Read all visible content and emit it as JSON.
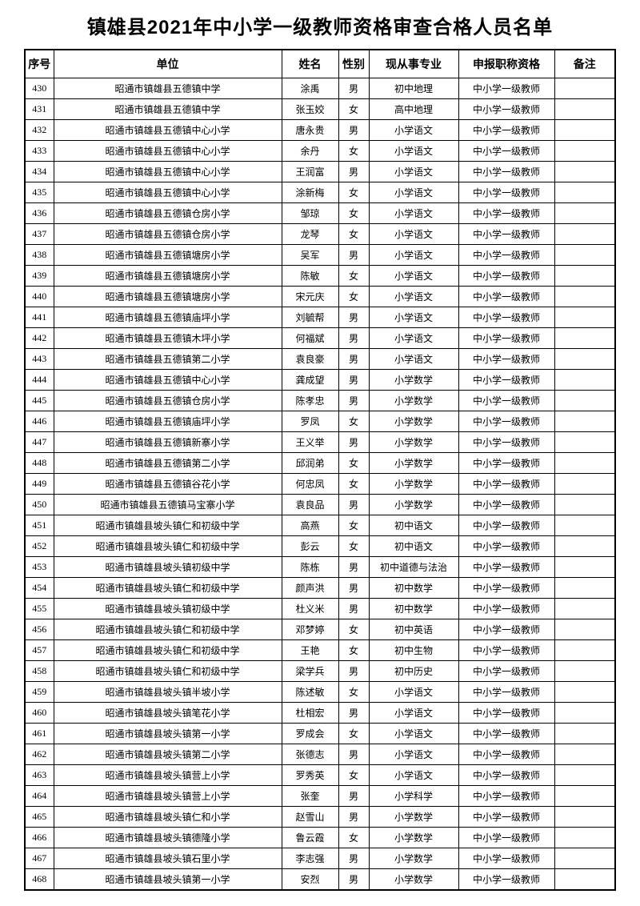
{
  "page": {
    "title": "镇雄县2021年中小学一级教师资格审查合格人员名单"
  },
  "colors": {
    "background": "#ffffff",
    "text": "#000000",
    "border": "#000000"
  },
  "table": {
    "headers": [
      "序号",
      "单位",
      "姓名",
      "性别",
      "现从事专业",
      "申报职称资格",
      "备注"
    ],
    "rows": [
      [
        "430",
        "昭通市镇雄县五德镇中学",
        "涂禹",
        "男",
        "初中地理",
        "中小学一级教师",
        ""
      ],
      [
        "431",
        "昭通市镇雄县五德镇中学",
        "张玉姣",
        "女",
        "高中地理",
        "中小学一级教师",
        ""
      ],
      [
        "432",
        "昭通市镇雄县五德镇中心小学",
        "唐永贵",
        "男",
        "小学语文",
        "中小学一级教师",
        ""
      ],
      [
        "433",
        "昭通市镇雄县五德镇中心小学",
        "余丹",
        "女",
        "小学语文",
        "中小学一级教师",
        ""
      ],
      [
        "434",
        "昭通市镇雄县五德镇中心小学",
        "王润富",
        "男",
        "小学语文",
        "中小学一级教师",
        ""
      ],
      [
        "435",
        "昭通市镇雄县五德镇中心小学",
        "涂新梅",
        "女",
        "小学语文",
        "中小学一级教师",
        ""
      ],
      [
        "436",
        "昭通市镇雄县五德镇仓房小学",
        "邹琼",
        "女",
        "小学语文",
        "中小学一级教师",
        ""
      ],
      [
        "437",
        "昭通市镇雄县五德镇仓房小学",
        "龙琴",
        "女",
        "小学语文",
        "中小学一级教师",
        ""
      ],
      [
        "438",
        "昭通市镇雄县五德镇塘房小学",
        "吴军",
        "男",
        "小学语文",
        "中小学一级教师",
        ""
      ],
      [
        "439",
        "昭通市镇雄县五德镇塘房小学",
        "陈敏",
        "女",
        "小学语文",
        "中小学一级教师",
        ""
      ],
      [
        "440",
        "昭通市镇雄县五德镇塘房小学",
        "宋元庆",
        "女",
        "小学语文",
        "中小学一级教师",
        ""
      ],
      [
        "441",
        "昭通市镇雄县五德镇庙坪小学",
        "刘毓帮",
        "男",
        "小学语文",
        "中小学一级教师",
        ""
      ],
      [
        "442",
        "昭通市镇雄县五德镇木坪小学",
        "何福斌",
        "男",
        "小学语文",
        "中小学一级教师",
        ""
      ],
      [
        "443",
        "昭通市镇雄县五德镇第二小学",
        "袁良豪",
        "男",
        "小学语文",
        "中小学一级教师",
        ""
      ],
      [
        "444",
        "昭通市镇雄县五德镇中心小学",
        "龚成望",
        "男",
        "小学数学",
        "中小学一级教师",
        ""
      ],
      [
        "445",
        "昭通市镇雄县五德镇仓房小学",
        "陈孝忠",
        "男",
        "小学数学",
        "中小学一级教师",
        ""
      ],
      [
        "446",
        "昭通市镇雄县五德镇庙坪小学",
        "罗凤",
        "女",
        "小学数学",
        "中小学一级教师",
        ""
      ],
      [
        "447",
        "昭通市镇雄县五德镇新寨小学",
        "王义举",
        "男",
        "小学数学",
        "中小学一级教师",
        ""
      ],
      [
        "448",
        "昭通市镇雄县五德镇第二小学",
        "邱润弟",
        "女",
        "小学数学",
        "中小学一级教师",
        ""
      ],
      [
        "449",
        "昭通市镇雄县五德镇谷花小学",
        "何忠凤",
        "女",
        "小学数学",
        "中小学一级教师",
        ""
      ],
      [
        "450",
        "昭通市镇雄县五德镇马宝寨小学",
        "袁良品",
        "男",
        "小学数学",
        "中小学一级教师",
        ""
      ],
      [
        "451",
        "昭通市镇雄县坡头镇仁和初级中学",
        "高燕",
        "女",
        "初中语文",
        "中小学一级教师",
        ""
      ],
      [
        "452",
        "昭通市镇雄县坡头镇仁和初级中学",
        "彭云",
        "女",
        "初中语文",
        "中小学一级教师",
        ""
      ],
      [
        "453",
        "昭通市镇雄县坡头镇初级中学",
        "陈栋",
        "男",
        "初中道德与法治",
        "中小学一级教师",
        ""
      ],
      [
        "454",
        "昭通市镇雄县坡头镇仁和初级中学",
        "颜声洪",
        "男",
        "初中数学",
        "中小学一级教师",
        ""
      ],
      [
        "455",
        "昭通市镇雄县坡头镇初级中学",
        "杜义米",
        "男",
        "初中数学",
        "中小学一级教师",
        ""
      ],
      [
        "456",
        "昭通市镇雄县坡头镇仁和初级中学",
        "邓梦婷",
        "女",
        "初中英语",
        "中小学一级教师",
        ""
      ],
      [
        "457",
        "昭通市镇雄县坡头镇仁和初级中学",
        "王艳",
        "女",
        "初中生物",
        "中小学一级教师",
        ""
      ],
      [
        "458",
        "昭通市镇雄县坡头镇仁和初级中学",
        "梁学兵",
        "男",
        "初中历史",
        "中小学一级教师",
        ""
      ],
      [
        "459",
        "昭通市镇雄县坡头镇半坡小学",
        "陈述敏",
        "女",
        "小学语文",
        "中小学一级教师",
        ""
      ],
      [
        "460",
        "昭通市镇雄县坡头镇笔花小学",
        "杜相宏",
        "男",
        "小学语文",
        "中小学一级教师",
        ""
      ],
      [
        "461",
        "昭通市镇雄县坡头镇第一小学",
        "罗成会",
        "女",
        "小学语文",
        "中小学一级教师",
        ""
      ],
      [
        "462",
        "昭通市镇雄县坡头镇第二小学",
        "张德志",
        "男",
        "小学语文",
        "中小学一级教师",
        ""
      ],
      [
        "463",
        "昭通市镇雄县坡头镇营上小学",
        "罗秀英",
        "女",
        "小学语文",
        "中小学一级教师",
        ""
      ],
      [
        "464",
        "昭通市镇雄县坡头镇营上小学",
        "张奎",
        "男",
        "小学科学",
        "中小学一级教师",
        ""
      ],
      [
        "465",
        "昭通市镇雄县坡头镇仁和小学",
        "赵雪山",
        "男",
        "小学数学",
        "中小学一级教师",
        ""
      ],
      [
        "466",
        "昭通市镇雄县坡头镇德隆小学",
        "鲁云霞",
        "女",
        "小学数学",
        "中小学一级教师",
        ""
      ],
      [
        "467",
        "昭通市镇雄县坡头镇石里小学",
        "李志强",
        "男",
        "小学数学",
        "中小学一级教师",
        ""
      ],
      [
        "468",
        "昭通市镇雄县坡头镇第一小学",
        "安烈",
        "男",
        "小学数学",
        "中小学一级教师",
        ""
      ]
    ]
  }
}
